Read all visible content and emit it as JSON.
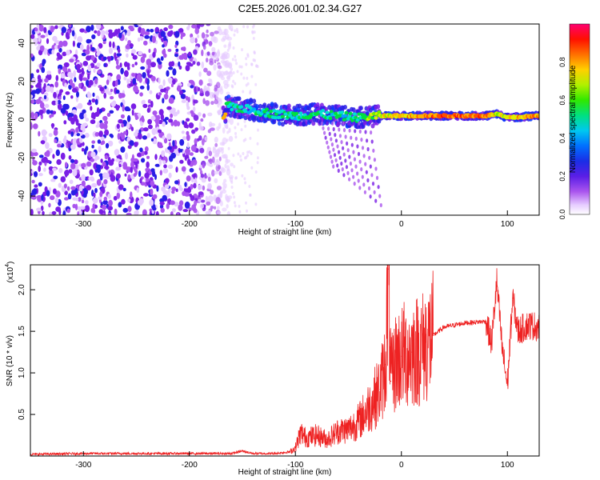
{
  "chart_data": [
    {
      "type": "heatmap",
      "title": "C2E5.2026.001.02.34.G27",
      "xlabel": "Height of straight line (km)",
      "ylabel": "Frequency (Hz)",
      "xlim": [
        -350,
        130
      ],
      "ylim": [
        -50,
        50
      ],
      "xticks": [
        -300,
        -200,
        -100,
        0,
        100
      ],
      "yticks": [
        -40,
        -20,
        0,
        20,
        40
      ],
      "colorbar": {
        "label": "Normalized spectral amplitude",
        "range": [
          0,
          1
        ],
        "ticks": [
          "0.0",
          "0.2",
          "0.4",
          "0.6",
          "0.8"
        ],
        "colors": [
          "#ffffff",
          "#e6ccff",
          "#aa55ee",
          "#7a1ee6",
          "#2a1ee6",
          "#0a3cff",
          "#00a8ff",
          "#00e0d0",
          "#00e040",
          "#70f000",
          "#e0f000",
          "#ffb000",
          "#ff5000",
          "#ff0000",
          "#ff0060"
        ]
      },
      "noise_region": {
        "x": [
          -350,
          -160
        ],
        "freq_range": [
          -50,
          50
        ],
        "amplitude": [
          0.05,
          0.3
        ]
      },
      "signal_track": [
        {
          "x": -165,
          "freq": 7,
          "amplitude": 0.55
        },
        {
          "x": -140,
          "freq": 5,
          "amplitude": 0.5
        },
        {
          "x": -120,
          "freq": 3,
          "amplitude": 0.55
        },
        {
          "x": -100,
          "freq": 2,
          "amplitude": 0.5
        },
        {
          "x": -80,
          "freq": 3,
          "amplitude": 0.55
        },
        {
          "x": -60,
          "freq": 2,
          "amplitude": 0.5
        },
        {
          "x": -40,
          "freq": 1,
          "amplitude": 0.55
        },
        {
          "x": -20,
          "freq": 2,
          "amplitude": 0.7
        },
        {
          "x": 0,
          "freq": 2,
          "amplitude": 0.75
        },
        {
          "x": 40,
          "freq": 2,
          "amplitude": 0.85
        },
        {
          "x": 80,
          "freq": 2,
          "amplitude": 0.85
        },
        {
          "x": 90,
          "freq": 3,
          "amplitude": 0.7
        },
        {
          "x": 100,
          "freq": 1,
          "amplitude": 0.75
        },
        {
          "x": 130,
          "freq": 2,
          "amplitude": 0.8
        }
      ]
    },
    {
      "type": "line",
      "title": "",
      "xlabel": "Height of straight line (km)",
      "ylabel": "SNR (10 * v/v)",
      "scale_label": "(x10",
      "scale_exponent": "4",
      "xlim": [
        -350,
        130
      ],
      "ylim": [
        0,
        2.3
      ],
      "xticks": [
        -300,
        -200,
        -100,
        0,
        100
      ],
      "yticks": [
        "0.5",
        "1.0",
        "1.5",
        "2.0"
      ],
      "color": "#ee2222",
      "series": [
        {
          "name": "SNR",
          "x": [
            -350,
            -300,
            -250,
            -200,
            -160,
            -150,
            -140,
            -120,
            -105,
            -100,
            -95,
            -90,
            -80,
            -70,
            -60,
            -50,
            -40,
            -30,
            -20,
            -15,
            -12,
            -10,
            -5,
            0,
            10,
            20,
            30,
            40,
            60,
            80,
            85,
            90,
            95,
            100,
            105,
            110,
            120,
            130
          ],
          "y": [
            0.02,
            0.03,
            0.03,
            0.03,
            0.03,
            0.06,
            0.03,
            0.03,
            0.05,
            0.1,
            0.28,
            0.22,
            0.25,
            0.2,
            0.3,
            0.32,
            0.42,
            0.6,
            0.8,
            1.1,
            2.25,
            0.9,
            1.15,
            1.2,
            1.25,
            1.3,
            1.45,
            1.55,
            1.6,
            1.62,
            1.35,
            2.1,
            1.3,
            0.85,
            1.9,
            1.5,
            1.58,
            1.55
          ]
        }
      ]
    }
  ]
}
